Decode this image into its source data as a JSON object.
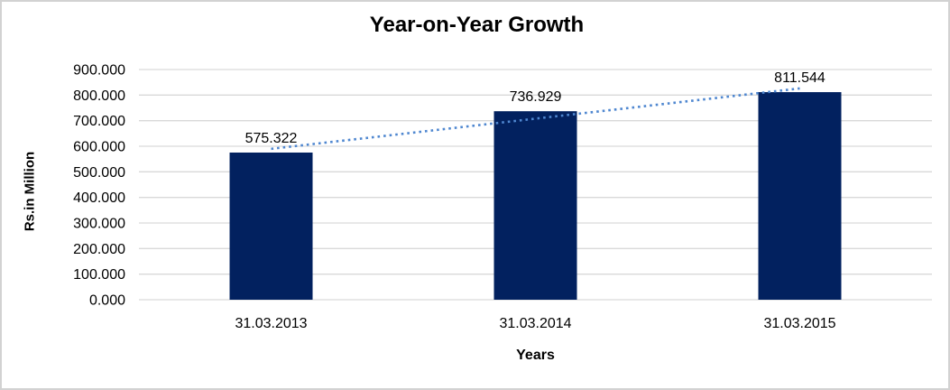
{
  "chart_data": {
    "type": "bar",
    "title": "Year-on-Year Growth",
    "xlabel": "Years",
    "ylabel": "Rs.in Million",
    "categories": [
      "31.03.2013",
      "31.03.2014",
      "31.03.2015"
    ],
    "values": [
      575.322,
      736.929,
      811.544
    ],
    "data_labels": [
      "575.322",
      "736.929",
      "811.544"
    ],
    "y_ticks": [
      "0.000",
      "100.000",
      "200.000",
      "300.000",
      "400.000",
      "500.000",
      "600.000",
      "700.000",
      "800.000",
      "900.000"
    ],
    "ylim": [
      0,
      900
    ],
    "grid": true,
    "legend": "none",
    "colors": {
      "bar_fill": "#02215f",
      "gridline": "#d9d9d9",
      "trendline": "#4f87d0",
      "text": "#000000"
    },
    "trendline": {
      "type": "linear",
      "style": "dotted"
    }
  }
}
